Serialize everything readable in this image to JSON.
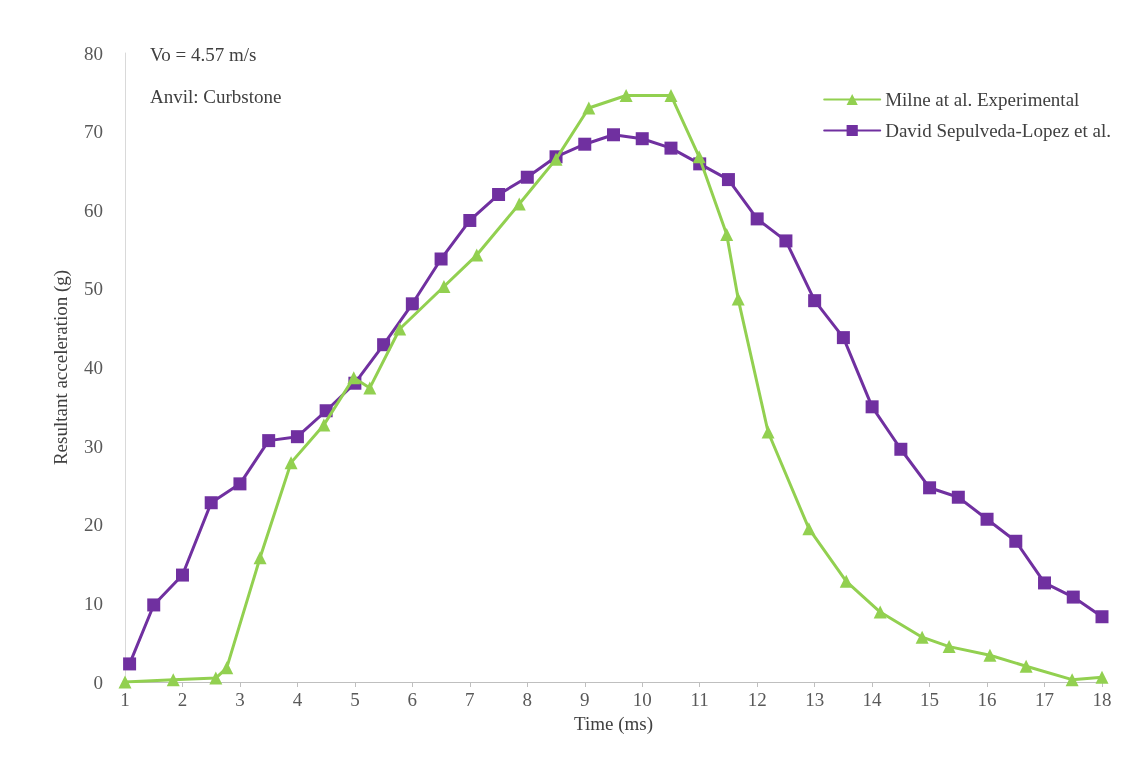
{
  "chart_data": {
    "type": "line",
    "xlabel": "Time (ms)",
    "ylabel": "Resultant acceleration (g)",
    "annotations": [
      "Vo = 4.57 m/s",
      "Anvil: Curbstone"
    ],
    "xlim": [
      1,
      18
    ],
    "xticks": [
      1,
      2,
      3,
      4,
      5,
      6,
      7,
      8,
      9,
      10,
      11,
      12,
      13,
      14,
      15,
      16,
      17,
      18
    ],
    "ylim": [
      0,
      80
    ],
    "yticks": [
      0,
      10,
      20,
      30,
      40,
      50,
      60,
      70,
      80
    ],
    "grid": false,
    "legend": "top right",
    "line_style": "solid",
    "series": [
      {
        "name": "Milne at al. Experimental",
        "color": "#92d050",
        "marker": "triangle",
        "x": [
          1,
          1.84,
          2.58,
          2.77,
          3.35,
          3.89,
          4.46,
          4.98,
          5.26,
          5.78,
          6.55,
          7.12,
          7.86,
          8.5,
          9.07,
          9.72,
          10.5,
          10.99,
          11.47,
          11.67,
          12.19,
          12.9,
          13.55,
          14.14,
          14.87,
          15.34,
          16.05,
          16.68,
          17.48,
          18
        ],
        "values": [
          0,
          0.3,
          0.5,
          1.8,
          15.8,
          27.9,
          32.7,
          38.7,
          37.4,
          44.9,
          50.3,
          54.3,
          60.8,
          66.5,
          73,
          74.6,
          74.6,
          66.8,
          56.9,
          48.7,
          31.8,
          19.5,
          12.8,
          8.9,
          5.7,
          4.5,
          3.4,
          2,
          0.3,
          0.6
        ]
      },
      {
        "name": "David Sepulveda-Lopez et al.",
        "color": "#7030a0",
        "marker": "square",
        "x": [
          1.08,
          1.5,
          2,
          2.5,
          3,
          3.5,
          4,
          4.5,
          5,
          5.5,
          6,
          6.5,
          7,
          7.5,
          8,
          8.5,
          9,
          9.5,
          10,
          10.5,
          11,
          11.5,
          12,
          12.5,
          13,
          13.5,
          14,
          14.5,
          15,
          15.5,
          16,
          16.5,
          17,
          17.5,
          18
        ],
        "values": [
          2.3,
          9.8,
          13.6,
          22.8,
          25.2,
          30.7,
          31.2,
          34.5,
          38,
          42.9,
          48.1,
          53.8,
          58.7,
          62,
          64.2,
          66.8,
          68.4,
          69.6,
          69.1,
          67.9,
          65.9,
          63.9,
          58.9,
          56.1,
          48.5,
          43.8,
          35,
          29.6,
          24.7,
          23.5,
          20.7,
          17.9,
          12.6,
          10.8,
          8.3
        ]
      }
    ]
  }
}
